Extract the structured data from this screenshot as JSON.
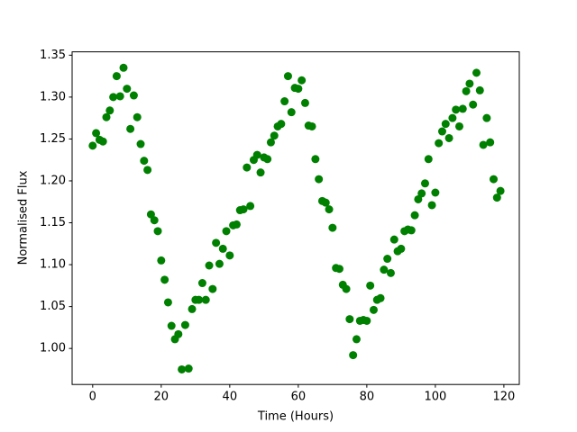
{
  "chart_data": {
    "type": "scatter",
    "xlabel": "Time (Hours)",
    "ylabel": "Normalised Flux",
    "x": [
      0,
      1,
      2,
      3,
      4,
      5,
      6,
      7,
      8,
      9,
      10,
      11,
      12,
      13,
      14,
      15,
      16,
      17,
      18,
      19,
      20,
      21,
      22,
      23,
      24,
      25,
      26,
      27,
      28,
      29,
      30,
      31,
      32,
      33,
      34,
      35,
      36,
      37,
      38,
      39,
      40,
      41,
      42,
      43,
      44,
      45,
      46,
      47,
      48,
      49,
      50,
      51,
      52,
      53,
      54,
      55,
      56,
      57,
      58,
      59,
      60,
      61,
      62,
      63,
      64,
      65,
      66,
      67,
      68,
      69,
      70,
      71,
      72,
      73,
      74,
      75,
      76,
      77,
      78,
      79,
      80,
      81,
      82,
      83,
      84,
      85,
      86,
      87,
      88,
      89,
      90,
      91,
      92,
      93,
      94,
      95,
      96,
      97,
      98,
      99,
      100,
      101,
      102,
      103,
      104,
      105,
      106,
      107,
      108,
      109,
      110,
      111,
      112,
      113,
      114,
      115,
      116,
      117,
      118,
      119
    ],
    "series": [
      {
        "color": "#008000",
        "values": [
          1.242,
          1.257,
          1.249,
          1.247,
          1.276,
          1.284,
          1.3,
          1.325,
          1.301,
          1.335,
          1.31,
          1.262,
          1.302,
          1.276,
          1.244,
          1.224,
          1.213,
          1.16,
          1.153,
          1.14,
          1.105,
          1.082,
          1.055,
          1.027,
          1.011,
          1.017,
          0.975,
          1.028,
          0.976,
          1.047,
          1.058,
          1.058,
          1.078,
          1.058,
          1.099,
          1.071,
          1.126,
          1.101,
          1.119,
          1.14,
          1.111,
          1.147,
          1.148,
          1.165,
          1.166,
          1.216,
          1.17,
          1.225,
          1.231,
          1.21,
          1.228,
          1.226,
          1.246,
          1.254,
          1.265,
          1.268,
          1.295,
          1.325,
          1.282,
          1.311,
          1.31,
          1.32,
          1.293,
          1.266,
          1.265,
          1.226,
          1.202,
          1.176,
          1.174,
          1.166,
          1.144,
          1.096,
          1.095,
          1.076,
          1.071,
          1.035,
          0.992,
          1.011,
          1.033,
          1.034,
          1.033,
          1.075,
          1.046,
          1.058,
          1.06,
          1.094,
          1.107,
          1.09,
          1.13,
          1.116,
          1.119,
          1.14,
          1.142,
          1.141,
          1.159,
          1.178,
          1.185,
          1.197,
          1.226,
          1.171,
          1.186,
          1.245,
          1.259,
          1.268,
          1.251,
          1.275,
          1.285,
          1.265,
          1.286,
          1.307,
          1.316,
          1.291,
          1.329,
          1.308,
          1.243,
          1.275,
          1.246,
          1.202,
          1.18,
          1.188
        ]
      }
    ],
    "xlim": [
      -6,
      124.5
    ],
    "ylim": [
      0.957,
      1.354
    ],
    "xticks": [
      0,
      20,
      40,
      60,
      80,
      100,
      120
    ],
    "yticks": [
      {
        "value": 1.0,
        "label": "1.00"
      },
      {
        "value": 1.05,
        "label": "1.05"
      },
      {
        "value": 1.1,
        "label": "1.10"
      },
      {
        "value": 1.15,
        "label": "1.15"
      },
      {
        "value": 1.2,
        "label": "1.20"
      },
      {
        "value": 1.25,
        "label": "1.25"
      },
      {
        "value": 1.3,
        "label": "1.30"
      },
      {
        "value": 1.35,
        "label": "1.35"
      }
    ]
  }
}
